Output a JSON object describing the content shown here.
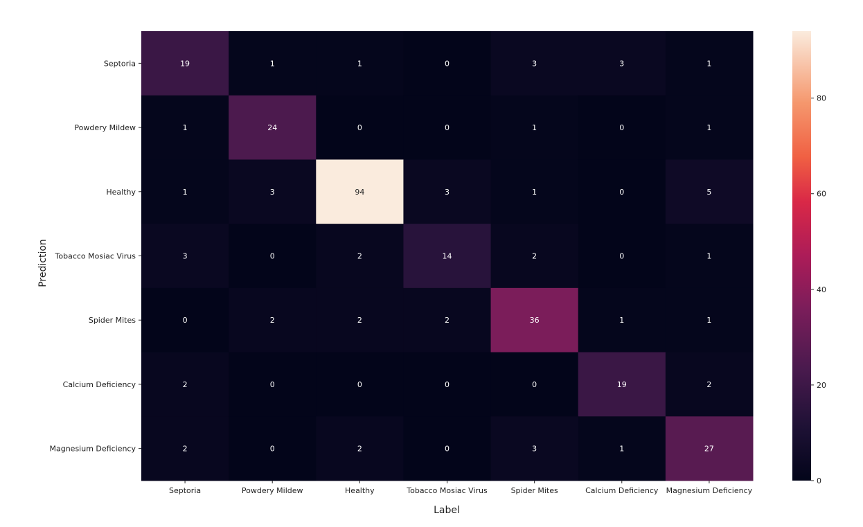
{
  "chart_data": {
    "type": "heatmap",
    "title": "",
    "xlabel": "Label",
    "ylabel": "Prediction",
    "x_categories": [
      "Septoria",
      "Powdery Mildew",
      "Healthy",
      "Tobacco Mosiac Virus",
      "Spider Mites",
      "Calcium Deficiency",
      "Magnesium Deficiency"
    ],
    "y_categories": [
      "Septoria",
      "Powdery Mildew",
      "Healthy",
      "Tobacco Mosiac Virus",
      "Spider Mites",
      "Calcium Deficiency",
      "Magnesium Deficiency"
    ],
    "values": [
      [
        19,
        1,
        1,
        0,
        3,
        3,
        1
      ],
      [
        1,
        24,
        0,
        0,
        1,
        0,
        1
      ],
      [
        1,
        3,
        94,
        3,
        1,
        0,
        5
      ],
      [
        3,
        0,
        2,
        14,
        2,
        0,
        1
      ],
      [
        0,
        2,
        2,
        2,
        36,
        1,
        1
      ],
      [
        2,
        0,
        0,
        0,
        0,
        19,
        2
      ],
      [
        2,
        0,
        2,
        0,
        3,
        1,
        27
      ]
    ],
    "colorbar": {
      "range": [
        0,
        94
      ],
      "ticks": [
        0,
        20,
        40,
        60,
        80
      ],
      "colormap": "rocket"
    }
  }
}
